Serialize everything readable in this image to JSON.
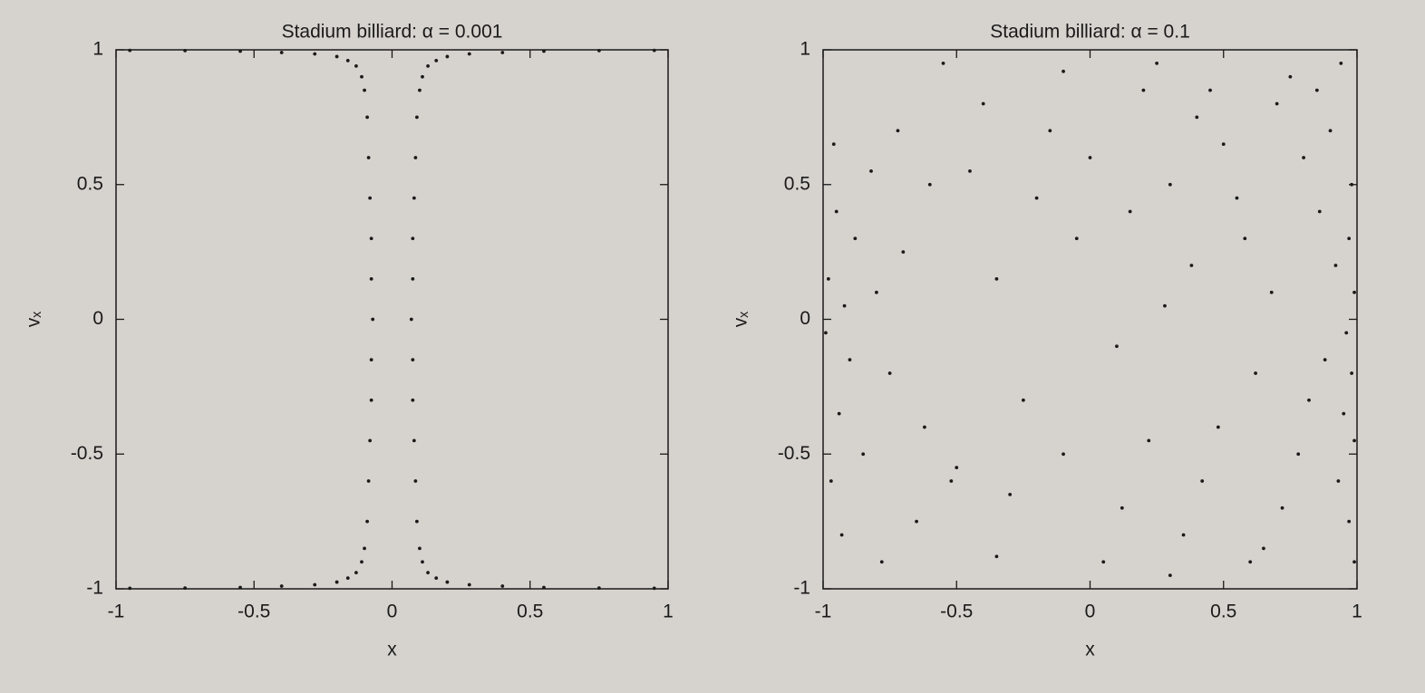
{
  "chart_data": [
    {
      "type": "scatter",
      "title": "Stadium billiard: α = 0.001",
      "x_label": "x",
      "y_label": "vₓ",
      "color": "#1a1a1a",
      "xlim": [
        -1,
        1
      ],
      "ylim": [
        -1,
        1
      ],
      "xticks": [
        -1,
        -0.5,
        0,
        0.5,
        1
      ],
      "yticks": [
        -1,
        -0.5,
        0,
        0.5,
        1
      ],
      "x": [
        0.95,
        0.75,
        0.55,
        0.4,
        0.28,
        0.2,
        0.16,
        0.13,
        0.11,
        0.1,
        0.09,
        0.085,
        0.08,
        0.075,
        0.075,
        0.07,
        0.075,
        0.075,
        0.08,
        0.085,
        0.09,
        0.1,
        0.11,
        0.13,
        0.16,
        0.2,
        0.28,
        0.4,
        0.55,
        0.75,
        0.95,
        -0.95,
        -0.75,
        -0.55,
        -0.4,
        -0.28,
        -0.2,
        -0.16,
        -0.13,
        -0.11,
        -0.1,
        -0.09,
        -0.085,
        -0.08,
        -0.075,
        -0.075,
        -0.07,
        -0.075,
        -0.075,
        -0.08,
        -0.085,
        -0.09,
        -0.1,
        -0.11,
        -0.13,
        -0.16,
        -0.2,
        -0.28,
        -0.4,
        -0.55,
        -0.75,
        -0.95
      ],
      "values": [
        0.998,
        0.997,
        0.995,
        0.99,
        0.985,
        0.975,
        0.96,
        0.94,
        0.9,
        0.85,
        0.75,
        0.6,
        0.45,
        0.3,
        0.15,
        0,
        -0.15,
        -0.3,
        -0.45,
        -0.6,
        -0.75,
        -0.85,
        -0.9,
        -0.94,
        -0.96,
        -0.975,
        -0.985,
        -0.99,
        -0.995,
        -0.997,
        -0.998,
        0.998,
        0.997,
        0.995,
        0.99,
        0.985,
        0.975,
        0.96,
        0.94,
        0.9,
        0.85,
        0.75,
        0.6,
        0.45,
        0.3,
        0.15,
        0,
        -0.15,
        -0.3,
        -0.45,
        -0.6,
        -0.75,
        -0.85,
        -0.9,
        -0.94,
        -0.96,
        -0.975,
        -0.985,
        -0.99,
        -0.995,
        -0.997,
        -0.998
      ]
    },
    {
      "type": "scatter",
      "title": "Stadium billiard: α = 0.1",
      "x_label": "x",
      "y_label": "vₓ",
      "color": "#1a1a1a",
      "xlim": [
        -1,
        1
      ],
      "ylim": [
        -1,
        1
      ],
      "xticks": [
        -1,
        -0.5,
        0,
        0.5,
        1
      ],
      "yticks": [
        -1,
        -0.5,
        0,
        0.5,
        1
      ],
      "x": [
        0.98,
        0.97,
        0.99,
        0.96,
        0.98,
        0.95,
        0.99,
        0.93,
        0.97,
        0.9,
        0.85,
        0.92,
        0.88,
        0.82,
        0.86,
        0.8,
        0.75,
        0.7,
        0.78,
        0.72,
        0.65,
        0.6,
        0.68,
        0.62,
        0.55,
        0.5,
        0.45,
        0.4,
        0.48,
        0.42,
        0.35,
        0.3,
        0.38,
        0.3,
        0.25,
        0.2,
        0.15,
        0.1,
        0.22,
        0.12,
        0.05,
        0.0,
        -0.05,
        -0.1,
        -0.15,
        -0.2,
        -0.25,
        -0.3,
        -0.35,
        -0.4,
        -0.45,
        -0.5,
        -0.52,
        -0.55,
        -0.6,
        -0.62,
        -0.65,
        -0.7,
        -0.72,
        -0.75,
        -0.78,
        -0.8,
        -0.82,
        -0.85,
        -0.88,
        -0.9,
        -0.92,
        -0.94,
        -0.95,
        -0.97,
        -0.98,
        -0.99,
        -0.96,
        -0.93,
        0.94,
        0.99,
        0.58,
        -0.1,
        0.28,
        -0.35
      ],
      "values": [
        0.5,
        0.3,
        0.1,
        -0.05,
        -0.2,
        -0.35,
        -0.45,
        -0.6,
        -0.75,
        0.7,
        0.85,
        0.2,
        -0.15,
        -0.3,
        0.4,
        0.6,
        0.9,
        0.8,
        -0.5,
        -0.7,
        -0.85,
        -0.9,
        0.1,
        -0.2,
        0.45,
        0.65,
        0.85,
        0.75,
        -0.4,
        -0.6,
        -0.8,
        -0.95,
        0.2,
        0.5,
        0.95,
        0.85,
        0.4,
        -0.1,
        -0.45,
        -0.7,
        -0.9,
        0.6,
        0.3,
        0.92,
        0.7,
        0.45,
        -0.3,
        -0.65,
        -0.88,
        0.8,
        0.55,
        -0.55,
        -0.6,
        0.95,
        0.5,
        -0.4,
        -0.75,
        0.25,
        0.7,
        -0.2,
        -0.9,
        0.1,
        0.55,
        -0.5,
        0.3,
        -0.15,
        0.05,
        -0.35,
        0.4,
        -0.6,
        0.15,
        -0.05,
        0.65,
        -0.8,
        0.95,
        -0.9,
        0.3,
        -0.5,
        0.05,
        0.15
      ]
    }
  ]
}
